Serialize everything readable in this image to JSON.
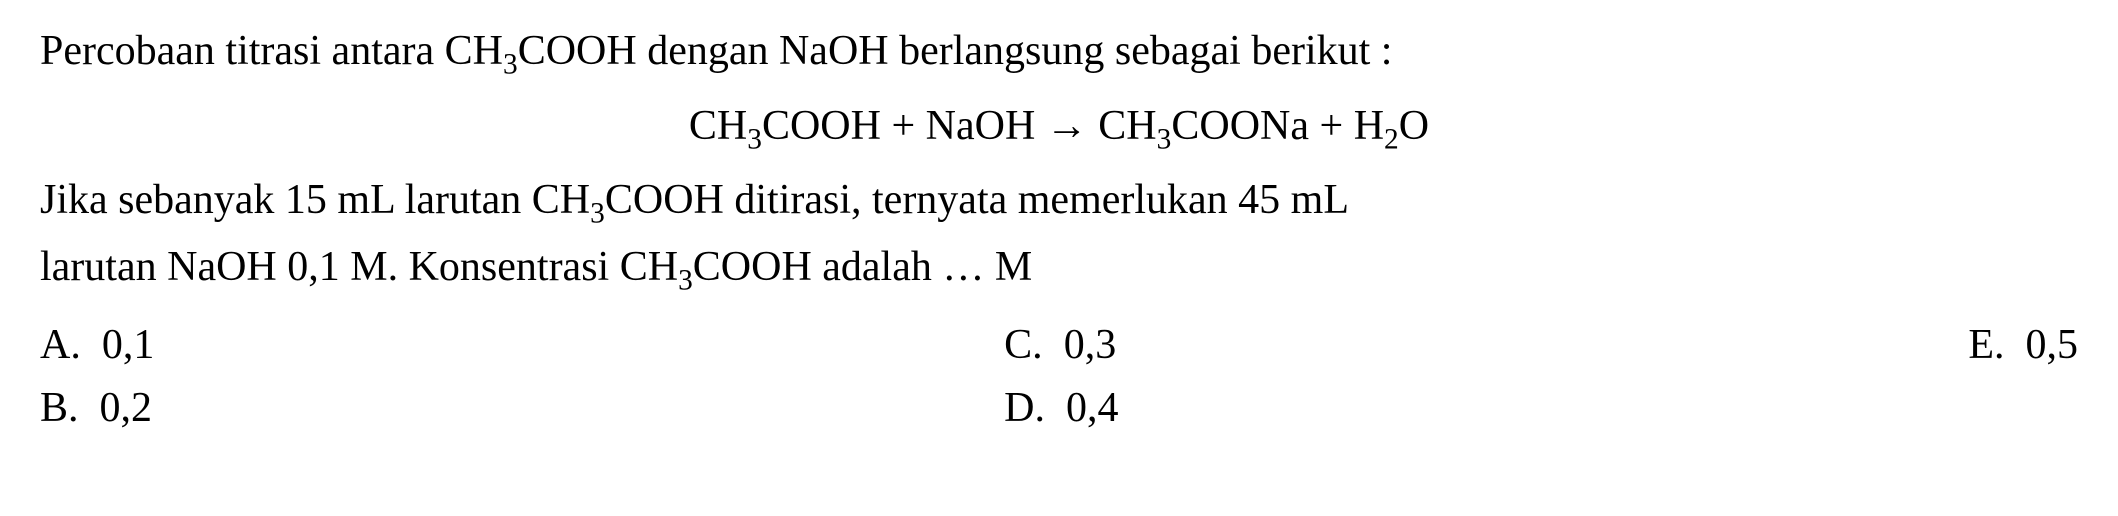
{
  "question": {
    "intro_pre": "Percobaan titrasi antara  CH",
    "intro_sub1": "3",
    "intro_post": "COOH dengan NaOH berlangsung sebagai berikut :",
    "equation": {
      "reactant1_pre": "CH",
      "reactant1_sub": "3",
      "reactant1_post": "COOH",
      "plus1": "  +  ",
      "reactant2": "NaOH",
      "arrow": "   →   ",
      "product1_pre": "CH",
      "product1_sub": "3",
      "product1_post": "COONa",
      "plus2": "  +  ",
      "product2_pre": "H",
      "product2_sub": "2",
      "product2_post": "O"
    },
    "line2_pre": "Jika sebanyak 15 mL larutan CH",
    "line2_sub": "3",
    "line2_post": "COOH ditirasi, ternyata memerlukan 45 mL",
    "line3_pre": "larutan NaOH  0,1 M. Konsentrasi CH",
    "line3_sub": "3",
    "line3_post": "COOH adalah … M"
  },
  "options": {
    "a": {
      "label": "A.",
      "value": "0,1"
    },
    "b": {
      "label": "B.",
      "value": "0,2"
    },
    "c": {
      "label": "C.",
      "value": "0,3"
    },
    "d": {
      "label": "D.",
      "value": "0,4"
    },
    "e": {
      "label": "E.",
      "value": "0,5"
    }
  },
  "style": {
    "font_family": "Times New Roman",
    "font_size_pt": 42,
    "text_color": "#000000",
    "background_color": "#ffffff"
  }
}
